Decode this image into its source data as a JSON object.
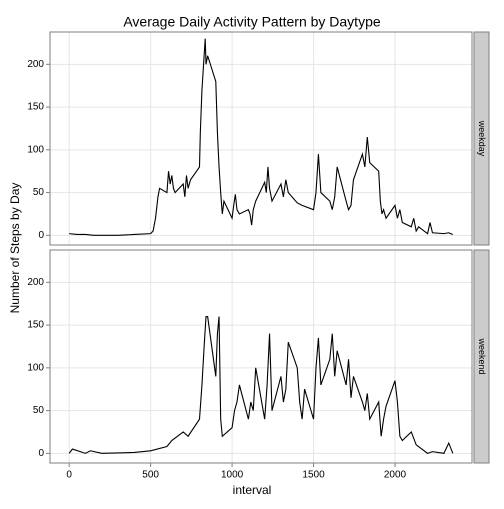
{
  "chart_data": {
    "type": "line",
    "title": "Average Daily Activity Pattern by Daytype",
    "xlabel": "interval",
    "ylabel": "Number of Steps by Day",
    "xlim": [
      -117.75,
      2472.75
    ],
    "xticks": [
      0,
      500,
      1000,
      1500,
      2000
    ],
    "ylim": [
      -11.3,
      237.8
    ],
    "yticks": [
      0,
      50,
      100,
      150,
      200
    ],
    "grid": true,
    "facets": true,
    "color": "#000000",
    "series": [
      {
        "name": "weekday",
        "x": [
          0,
          50,
          100,
          150,
          200,
          300,
          400,
          500,
          515,
          530,
          545,
          555,
          600,
          610,
          620,
          630,
          640,
          650,
          700,
          710,
          720,
          730,
          745,
          800,
          805,
          815,
          825,
          835,
          840,
          850,
          900,
          910,
          920,
          930,
          940,
          950,
          1000,
          1010,
          1020,
          1030,
          1045,
          1100,
          1110,
          1120,
          1130,
          1145,
          1200,
          1210,
          1220,
          1230,
          1245,
          1300,
          1315,
          1330,
          1345,
          1400,
          1430,
          1500,
          1515,
          1530,
          1545,
          1600,
          1615,
          1630,
          1645,
          1700,
          1715,
          1730,
          1745,
          1800,
          1815,
          1830,
          1845,
          1900,
          1910,
          1920,
          1930,
          1945,
          2000,
          2015,
          2030,
          2045,
          2100,
          2115,
          2130,
          2145,
          2200,
          2215,
          2230,
          2300,
          2330,
          2355
        ],
        "values": [
          2,
          1,
          1,
          0,
          0,
          0,
          1,
          2,
          5,
          20,
          45,
          55,
          50,
          75,
          60,
          70,
          55,
          50,
          60,
          45,
          70,
          55,
          65,
          80,
          120,
          170,
          200,
          230,
          200,
          210,
          180,
          120,
          80,
          50,
          25,
          40,
          20,
          35,
          48,
          30,
          25,
          30,
          25,
          12,
          30,
          40,
          62,
          50,
          80,
          55,
          40,
          60,
          45,
          65,
          50,
          38,
          35,
          30,
          50,
          95,
          50,
          40,
          30,
          45,
          80,
          40,
          30,
          35,
          65,
          95,
          80,
          115,
          85,
          75,
          40,
          25,
          30,
          20,
          35,
          20,
          30,
          15,
          10,
          20,
          5,
          10,
          2,
          15,
          3,
          2,
          3,
          1
        ]
      },
      {
        "name": "weekend",
        "x": [
          0,
          20,
          100,
          130,
          200,
          400,
          500,
          600,
          630,
          700,
          730,
          800,
          815,
          830,
          840,
          850,
          900,
          910,
          920,
          930,
          940,
          1000,
          1015,
          1030,
          1045,
          1100,
          1115,
          1130,
          1145,
          1200,
          1215,
          1230,
          1245,
          1300,
          1315,
          1330,
          1345,
          1400,
          1415,
          1430,
          1445,
          1500,
          1515,
          1530,
          1545,
          1600,
          1615,
          1630,
          1645,
          1700,
          1715,
          1730,
          1745,
          1800,
          1815,
          1830,
          1845,
          1900,
          1915,
          1930,
          1945,
          2000,
          2015,
          2030,
          2045,
          2100,
          2130,
          2200,
          2230,
          2300,
          2330,
          2355
        ],
        "values": [
          0,
          5,
          0,
          3,
          0,
          1,
          3,
          8,
          15,
          25,
          20,
          40,
          80,
          130,
          160,
          160,
          90,
          140,
          160,
          40,
          20,
          30,
          50,
          60,
          80,
          40,
          60,
          50,
          100,
          40,
          80,
          140,
          50,
          90,
          60,
          75,
          130,
          100,
          60,
          40,
          75,
          40,
          100,
          135,
          80,
          110,
          140,
          90,
          120,
          80,
          110,
          65,
          90,
          60,
          50,
          70,
          40,
          60,
          20,
          40,
          55,
          85,
          60,
          20,
          15,
          25,
          10,
          0,
          2,
          0,
          12,
          0
        ]
      }
    ]
  }
}
